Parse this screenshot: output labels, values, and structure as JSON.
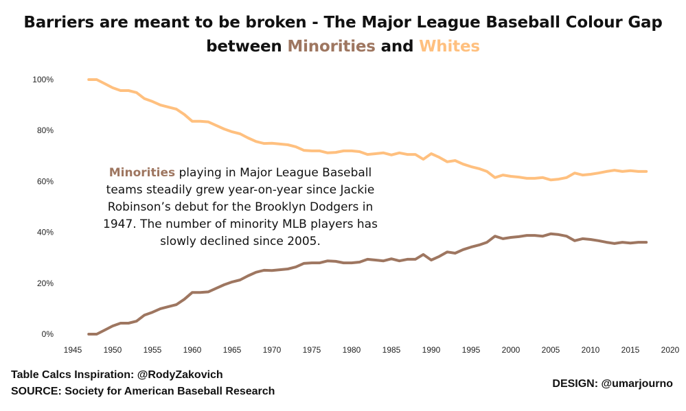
{
  "title": {
    "line1": "Barriers are meant to be broken - The Major League Baseball Colour Gap",
    "line2_prefix": "between ",
    "minorities_word": "Minorities",
    "and_word": " and ",
    "whites_word": "Whites"
  },
  "annotation": {
    "highlight": "Minorities",
    "text": " playing in Major League Baseball teams steadily grew year-on-year since Jackie Robinson’s debut for the Brooklyn Dodgers in 1947. The number of minority MLB players has slowly declined since 2005."
  },
  "footer": {
    "inspiration": "Table Calcs Inspiration: @RodyZakovich",
    "source": "SOURCE: Society for American Baseball Research",
    "design": "DESIGN: @umarjourno"
  },
  "chart_data": {
    "type": "line",
    "title": "Barriers are meant to be broken - The Major League Baseball Colour Gap between Minorities and Whites",
    "xlabel": "",
    "ylabel": "",
    "xlim": [
      1945,
      2020
    ],
    "ylim": [
      0,
      100
    ],
    "x_ticks": [
      "1945",
      "1950",
      "1955",
      "1960",
      "1965",
      "1970",
      "1975",
      "1980",
      "1985",
      "1990",
      "1995",
      "2000",
      "2005",
      "2010",
      "2015",
      "2020"
    ],
    "y_ticks": [
      "0%",
      "20%",
      "40%",
      "60%",
      "80%",
      "100%"
    ],
    "y_tick_values": [
      0,
      20,
      40,
      60,
      80,
      100
    ],
    "grid": false,
    "legend": "none (colour-coded title words)",
    "x": [
      1947,
      1948,
      1949,
      1950,
      1951,
      1952,
      1953,
      1954,
      1955,
      1956,
      1957,
      1958,
      1959,
      1960,
      1961,
      1962,
      1963,
      1964,
      1965,
      1966,
      1967,
      1968,
      1969,
      1970,
      1971,
      1972,
      1973,
      1974,
      1975,
      1976,
      1977,
      1978,
      1979,
      1980,
      1981,
      1982,
      1983,
      1984,
      1985,
      1986,
      1987,
      1988,
      1989,
      1990,
      1991,
      1992,
      1993,
      1994,
      1995,
      1996,
      1997,
      1998,
      1999,
      2000,
      2001,
      2002,
      2003,
      2004,
      2005,
      2006,
      2007,
      2008,
      2009,
      2010,
      2011,
      2012,
      2013,
      2014,
      2015,
      2016,
      2017
    ],
    "series": [
      {
        "name": "Minorities",
        "color": "#9e7660",
        "values": [
          0,
          0,
          1.6,
          3.2,
          4.3,
          4.3,
          5.1,
          7.5,
          8.6,
          10,
          10.8,
          11.6,
          13.7,
          16.4,
          16.4,
          16.6,
          18,
          19.4,
          20.5,
          21.3,
          22.9,
          24.3,
          25.1,
          25,
          25.3,
          25.6,
          26.4,
          27.8,
          28,
          28,
          28.8,
          28.6,
          28,
          28,
          28.3,
          29.4,
          29.1,
          28.8,
          29.6,
          28.8,
          29.4,
          29.4,
          31.3,
          29.1,
          30.5,
          32.3,
          31.8,
          33.2,
          34.2,
          35,
          36.1,
          38.5,
          37.5,
          38,
          38.3,
          38.8,
          38.8,
          38.5,
          39.4,
          39.1,
          38.5,
          36.7,
          37.5,
          37.2,
          36.7,
          36.1,
          35.6,
          36.1,
          35.8,
          36.1,
          36.1
        ]
      },
      {
        "name": "Whites",
        "color": "#ffc07f",
        "values": [
          100,
          100,
          98.4,
          96.8,
          95.7,
          95.7,
          94.9,
          92.5,
          91.4,
          90,
          89.2,
          88.4,
          86.3,
          83.6,
          83.6,
          83.4,
          82,
          80.6,
          79.5,
          78.7,
          77.1,
          75.7,
          74.9,
          75,
          74.7,
          74.4,
          73.6,
          72.2,
          72,
          72,
          71.2,
          71.4,
          72,
          72,
          71.7,
          70.6,
          70.9,
          71.2,
          70.4,
          71.2,
          70.6,
          70.6,
          68.7,
          70.9,
          69.5,
          67.7,
          68.2,
          66.8,
          65.8,
          65,
          63.9,
          61.5,
          62.5,
          62,
          61.7,
          61.2,
          61.2,
          61.5,
          60.6,
          60.9,
          61.5,
          63.3,
          62.5,
          62.8,
          63.3,
          63.9,
          64.4,
          63.9,
          64.2,
          63.9,
          63.9
        ]
      }
    ]
  }
}
